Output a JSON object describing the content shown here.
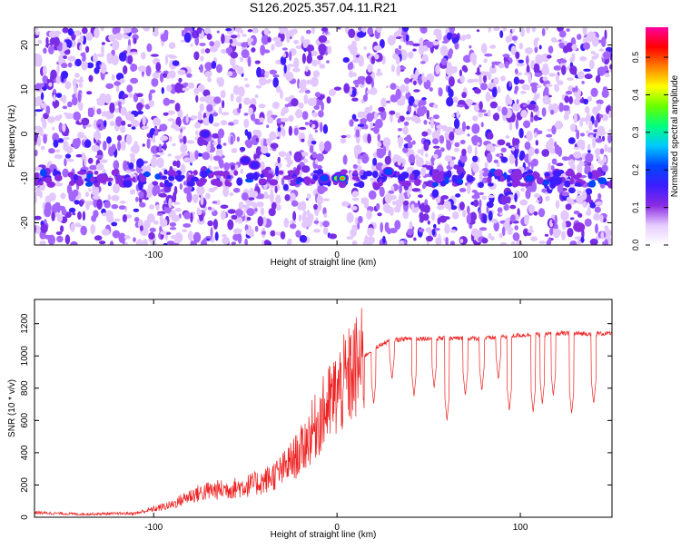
{
  "title": "S126.2025.357.04.11.R21",
  "chart_data": [
    {
      "type": "heatmap",
      "xlabel": "Height of straight line (km)",
      "ylabel": "Frequency (Hz)",
      "xlim": [
        -165,
        150
      ],
      "ylim": [
        -25,
        24
      ],
      "x_ticks": [
        -100,
        0,
        100
      ],
      "y_ticks": [
        -20,
        -10,
        0,
        10,
        20
      ],
      "colorbar": {
        "label": "Normalized spectral amplitude",
        "range": [
          0,
          0.58
        ],
        "ticks": [
          0.0,
          0.1,
          0.2,
          0.3,
          0.4,
          0.5
        ],
        "colormap": [
          "#ffffff",
          "#e6ccff",
          "#8a2be2",
          "#3d1dff",
          "#0046ff",
          "#00c8ff",
          "#00ff80",
          "#66ff00",
          "#ffff00",
          "#ff8000",
          "#ff0000",
          "#ff00a0"
        ]
      },
      "signal_band": {
        "frequency_hz": -10,
        "peak_height_km": 3,
        "peak_amplitude": 0.45
      },
      "gap": {
        "x_range": [
          -5,
          5
        ]
      }
    },
    {
      "type": "line",
      "xlabel": "Height of straight line (km)",
      "ylabel": "SNR (10 * v/v)",
      "xlim": [
        -165,
        150
      ],
      "ylim": [
        0,
        1350
      ],
      "x_ticks": [
        -100,
        0,
        100
      ],
      "y_ticks": [
        0,
        200,
        400,
        600,
        800,
        1000,
        1200
      ],
      "series": [
        {
          "color": "#ee2222",
          "envelope_x": [
            -165,
            -140,
            -110,
            -90,
            -80,
            -70,
            -60,
            -50,
            -40,
            -30,
            -20,
            -10,
            0,
            10,
            20,
            30,
            40,
            60,
            80,
            100,
            120,
            150
          ],
          "envelope_y": [
            30,
            20,
            25,
            80,
            140,
            170,
            180,
            200,
            230,
            300,
            420,
            620,
            800,
            950,
            1050,
            1100,
            1110,
            1110,
            1110,
            1130,
            1140,
            1140
          ],
          "dips_x": [
            20,
            30,
            42,
            53,
            60,
            70,
            79,
            88,
            94,
            107,
            112,
            118,
            128,
            140
          ],
          "dips_y": [
            700,
            850,
            750,
            800,
            600,
            750,
            780,
            850,
            660,
            650,
            700,
            750,
            640,
            700
          ]
        }
      ]
    }
  ]
}
